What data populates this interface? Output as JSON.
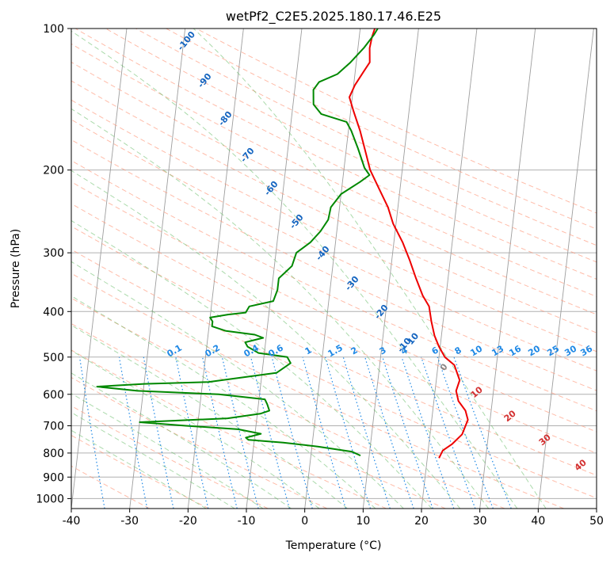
{
  "chart_data": {
    "type": "line",
    "title": "wetPf2_C2E5.2025.180.17.46.E25",
    "xlabel": "Temperature (°C)",
    "ylabel": "Pressure (hPa)",
    "xlim": [
      -40,
      50
    ],
    "ylim": [
      1050,
      100
    ],
    "y_scale": "log",
    "x_ticks": [
      -40,
      -30,
      -20,
      -10,
      0,
      10,
      20,
      30,
      40,
      50
    ],
    "y_ticks": [
      100,
      200,
      300,
      400,
      500,
      600,
      700,
      800,
      900,
      1000
    ],
    "grid": true,
    "colors": {
      "temperature": "#ee0000",
      "dewpoint": "#008800",
      "dry_adiabat": "#ff8f70",
      "moist_adiabat": "#66bb66",
      "mixing_ratio": "#1e88e5",
      "isotherm": "#999999",
      "dry_adiabat_label": "#d32f2f",
      "moist_adiabat_label": "#1565c0"
    },
    "series": [
      {
        "key": "temperature",
        "points": [
          [
            22.0,
            820
          ],
          [
            22.5,
            790
          ],
          [
            24.0,
            765
          ],
          [
            25.5,
            730
          ],
          [
            26.2,
            680
          ],
          [
            25.6,
            650
          ],
          [
            24.2,
            620
          ],
          [
            23.6,
            590
          ],
          [
            24.0,
            560
          ],
          [
            22.8,
            520
          ],
          [
            21.0,
            500
          ],
          [
            19.8,
            475
          ],
          [
            18.8,
            450
          ],
          [
            18.0,
            420
          ],
          [
            17.3,
            390
          ],
          [
            16.0,
            370
          ],
          [
            14.5,
            340
          ],
          [
            13.0,
            310
          ],
          [
            11.5,
            285
          ],
          [
            9.5,
            260
          ],
          [
            8.3,
            240
          ],
          [
            6.0,
            215
          ],
          [
            4.5,
            200
          ],
          [
            3.5,
            185
          ],
          [
            2.0,
            165
          ],
          [
            0.5,
            150
          ],
          [
            -0.5,
            140
          ],
          [
            0.2,
            132
          ],
          [
            1.5,
            123
          ],
          [
            2.3,
            118
          ],
          [
            2.0,
            110
          ],
          [
            2.2,
            104
          ],
          [
            2.5,
            100
          ]
        ]
      },
      {
        "key": "dewpoint",
        "points": [
          [
            8.5,
            810
          ],
          [
            7.0,
            795
          ],
          [
            1.0,
            775
          ],
          [
            -5.0,
            760
          ],
          [
            -11.0,
            750
          ],
          [
            -11.5,
            742
          ],
          [
            -9.0,
            728
          ],
          [
            -13.0,
            712
          ],
          [
            -22.0,
            700
          ],
          [
            -30.0,
            688
          ],
          [
            -15.0,
            675
          ],
          [
            -9.5,
            660
          ],
          [
            -8.0,
            650
          ],
          [
            -8.5,
            630
          ],
          [
            -9.0,
            615
          ],
          [
            -17.0,
            600
          ],
          [
            -31.0,
            590
          ],
          [
            -38.0,
            578
          ],
          [
            -35.0,
            575
          ],
          [
            -30.0,
            570
          ],
          [
            -19.0,
            565
          ],
          [
            -7.5,
            540
          ],
          [
            -5.3,
            515
          ],
          [
            -6.0,
            500
          ],
          [
            -11.0,
            490
          ],
          [
            -13.0,
            475
          ],
          [
            -13.5,
            465
          ],
          [
            -10.5,
            455
          ],
          [
            -12.0,
            448
          ],
          [
            -17.0,
            440
          ],
          [
            -19.5,
            430
          ],
          [
            -19.5,
            420
          ],
          [
            -20.0,
            412
          ],
          [
            -17.0,
            406
          ],
          [
            -14.0,
            402
          ],
          [
            -13.5,
            390
          ],
          [
            -9.5,
            380
          ],
          [
            -9.0,
            360
          ],
          [
            -9.0,
            340
          ],
          [
            -7.0,
            320
          ],
          [
            -6.5,
            300
          ],
          [
            -4.3,
            285
          ],
          [
            -2.8,
            270
          ],
          [
            -1.7,
            255
          ],
          [
            -1.5,
            240
          ],
          [
            0.0,
            225
          ],
          [
            3.0,
            212
          ],
          [
            4.5,
            205
          ],
          [
            3.5,
            198
          ],
          [
            2.0,
            180
          ],
          [
            0.5,
            165
          ],
          [
            -0.5,
            158
          ],
          [
            -5.0,
            152
          ],
          [
            -6.5,
            145
          ],
          [
            -6.8,
            135
          ],
          [
            -6.0,
            130
          ],
          [
            -3.0,
            125
          ],
          [
            -1.0,
            118
          ],
          [
            1.0,
            110
          ],
          [
            2.5,
            103
          ],
          [
            3.0,
            100
          ]
        ]
      }
    ],
    "dry_adiabat_labels": [
      "10",
      "20",
      "30",
      "40"
    ],
    "moist_adiabat_labels": [
      "0",
      "10",
      "-10",
      "-20",
      "-30",
      "-40",
      "-50",
      "-60",
      "-70",
      "-80",
      "-90",
      "-100"
    ],
    "mixing_ratio_labels": [
      "0.1",
      "0.2",
      "0.4",
      "0.6",
      "1",
      "1.5",
      "2",
      "3",
      "4",
      "6",
      "8",
      "10",
      "13",
      "16",
      "20",
      "25",
      "30",
      "36"
    ],
    "tick_labels_x": [
      "-40",
      "-30",
      "-20",
      "-10",
      "0",
      "10",
      "20",
      "30",
      "40",
      "50"
    ],
    "tick_labels_y": [
      "100",
      "200",
      "300",
      "400",
      "500",
      "600",
      "700",
      "800",
      "900",
      "1000"
    ]
  }
}
